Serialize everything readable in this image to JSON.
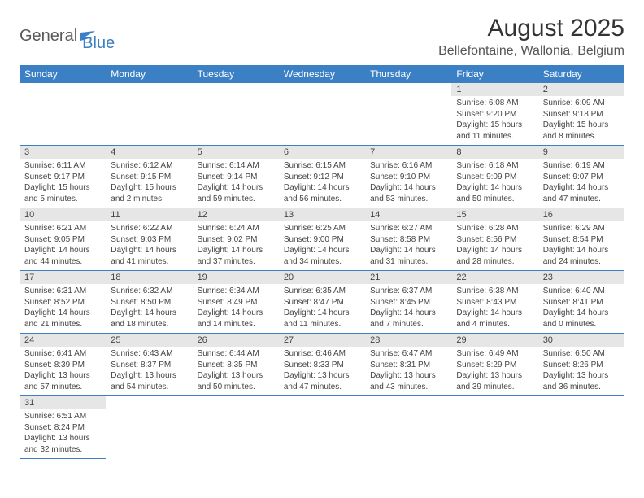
{
  "logo": {
    "main": "General",
    "sub": "Blue"
  },
  "title": "August 2025",
  "location": "Bellefontaine, Wallonia, Belgium",
  "colors": {
    "header_bg": "#3b7fc4",
    "header_text": "#ffffff",
    "daynum_bg": "#e6e6e6",
    "border": "#3b7fc4",
    "body_text": "#444444",
    "logo_main": "#5a5a5a",
    "logo_sub": "#3b7fc4"
  },
  "day_headers": [
    "Sunday",
    "Monday",
    "Tuesday",
    "Wednesday",
    "Thursday",
    "Friday",
    "Saturday"
  ],
  "weeks": [
    [
      null,
      null,
      null,
      null,
      null,
      {
        "n": "1",
        "sr": "6:08 AM",
        "ss": "9:20 PM",
        "dl": "15 hours and 11 minutes."
      },
      {
        "n": "2",
        "sr": "6:09 AM",
        "ss": "9:18 PM",
        "dl": "15 hours and 8 minutes."
      }
    ],
    [
      {
        "n": "3",
        "sr": "6:11 AM",
        "ss": "9:17 PM",
        "dl": "15 hours and 5 minutes."
      },
      {
        "n": "4",
        "sr": "6:12 AM",
        "ss": "9:15 PM",
        "dl": "15 hours and 2 minutes."
      },
      {
        "n": "5",
        "sr": "6:14 AM",
        "ss": "9:14 PM",
        "dl": "14 hours and 59 minutes."
      },
      {
        "n": "6",
        "sr": "6:15 AM",
        "ss": "9:12 PM",
        "dl": "14 hours and 56 minutes."
      },
      {
        "n": "7",
        "sr": "6:16 AM",
        "ss": "9:10 PM",
        "dl": "14 hours and 53 minutes."
      },
      {
        "n": "8",
        "sr": "6:18 AM",
        "ss": "9:09 PM",
        "dl": "14 hours and 50 minutes."
      },
      {
        "n": "9",
        "sr": "6:19 AM",
        "ss": "9:07 PM",
        "dl": "14 hours and 47 minutes."
      }
    ],
    [
      {
        "n": "10",
        "sr": "6:21 AM",
        "ss": "9:05 PM",
        "dl": "14 hours and 44 minutes."
      },
      {
        "n": "11",
        "sr": "6:22 AM",
        "ss": "9:03 PM",
        "dl": "14 hours and 41 minutes."
      },
      {
        "n": "12",
        "sr": "6:24 AM",
        "ss": "9:02 PM",
        "dl": "14 hours and 37 minutes."
      },
      {
        "n": "13",
        "sr": "6:25 AM",
        "ss": "9:00 PM",
        "dl": "14 hours and 34 minutes."
      },
      {
        "n": "14",
        "sr": "6:27 AM",
        "ss": "8:58 PM",
        "dl": "14 hours and 31 minutes."
      },
      {
        "n": "15",
        "sr": "6:28 AM",
        "ss": "8:56 PM",
        "dl": "14 hours and 28 minutes."
      },
      {
        "n": "16",
        "sr": "6:29 AM",
        "ss": "8:54 PM",
        "dl": "14 hours and 24 minutes."
      }
    ],
    [
      {
        "n": "17",
        "sr": "6:31 AM",
        "ss": "8:52 PM",
        "dl": "14 hours and 21 minutes."
      },
      {
        "n": "18",
        "sr": "6:32 AM",
        "ss": "8:50 PM",
        "dl": "14 hours and 18 minutes."
      },
      {
        "n": "19",
        "sr": "6:34 AM",
        "ss": "8:49 PM",
        "dl": "14 hours and 14 minutes."
      },
      {
        "n": "20",
        "sr": "6:35 AM",
        "ss": "8:47 PM",
        "dl": "14 hours and 11 minutes."
      },
      {
        "n": "21",
        "sr": "6:37 AM",
        "ss": "8:45 PM",
        "dl": "14 hours and 7 minutes."
      },
      {
        "n": "22",
        "sr": "6:38 AM",
        "ss": "8:43 PM",
        "dl": "14 hours and 4 minutes."
      },
      {
        "n": "23",
        "sr": "6:40 AM",
        "ss": "8:41 PM",
        "dl": "14 hours and 0 minutes."
      }
    ],
    [
      {
        "n": "24",
        "sr": "6:41 AM",
        "ss": "8:39 PM",
        "dl": "13 hours and 57 minutes."
      },
      {
        "n": "25",
        "sr": "6:43 AM",
        "ss": "8:37 PM",
        "dl": "13 hours and 54 minutes."
      },
      {
        "n": "26",
        "sr": "6:44 AM",
        "ss": "8:35 PM",
        "dl": "13 hours and 50 minutes."
      },
      {
        "n": "27",
        "sr": "6:46 AM",
        "ss": "8:33 PM",
        "dl": "13 hours and 47 minutes."
      },
      {
        "n": "28",
        "sr": "6:47 AM",
        "ss": "8:31 PM",
        "dl": "13 hours and 43 minutes."
      },
      {
        "n": "29",
        "sr": "6:49 AM",
        "ss": "8:29 PM",
        "dl": "13 hours and 39 minutes."
      },
      {
        "n": "30",
        "sr": "6:50 AM",
        "ss": "8:26 PM",
        "dl": "13 hours and 36 minutes."
      }
    ],
    [
      {
        "n": "31",
        "sr": "6:51 AM",
        "ss": "8:24 PM",
        "dl": "13 hours and 32 minutes."
      },
      null,
      null,
      null,
      null,
      null,
      null
    ]
  ],
  "labels": {
    "sunrise": "Sunrise: ",
    "sunset": "Sunset: ",
    "daylight": "Daylight: "
  }
}
